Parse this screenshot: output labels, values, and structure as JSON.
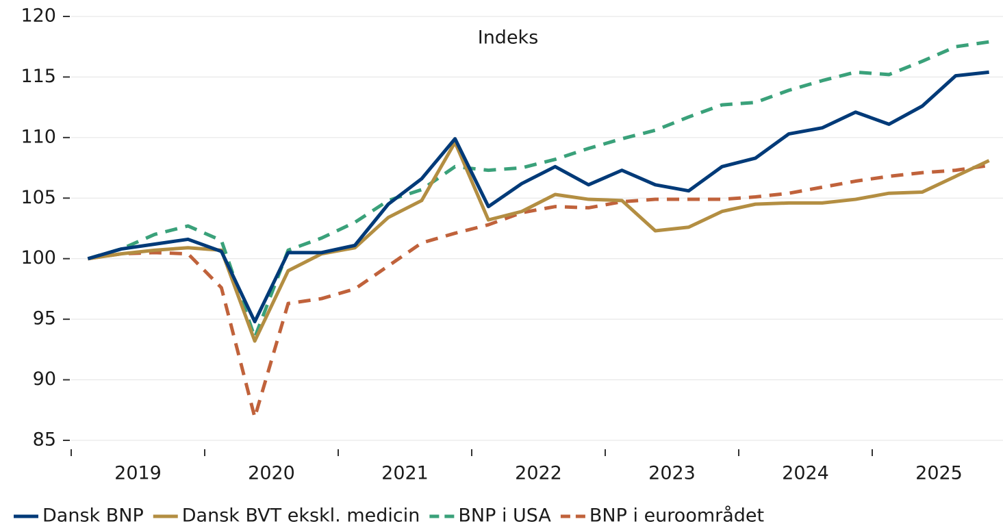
{
  "chart_data": {
    "type": "line",
    "title": "Indeks",
    "categories": [
      "2019",
      null,
      null,
      null,
      "2020",
      null,
      null,
      null,
      "2021",
      null,
      null,
      null,
      "2022",
      null,
      null,
      null,
      "2023",
      null,
      null,
      null,
      "2024",
      null,
      null,
      null,
      "2025",
      null,
      null,
      null
    ],
    "ylim": [
      85,
      120
    ],
    "yticks": [
      85,
      90,
      95,
      100,
      105,
      110,
      115,
      120
    ],
    "grid": true,
    "series": [
      {
        "name": "Dansk BNP",
        "color": "#003a78",
        "dash": false,
        "values": [
          100.0,
          100.8,
          101.2,
          101.6,
          100.6,
          94.8,
          100.5,
          100.5,
          101.1,
          104.5,
          106.6,
          109.9,
          104.3,
          106.2,
          107.6,
          106.1,
          107.3,
          106.1,
          105.6,
          107.6,
          108.3,
          110.3,
          110.8,
          112.1,
          111.1,
          112.6,
          115.1,
          115.4
        ]
      },
      {
        "name": "Dansk BVT ekskl. medicin",
        "color": "#b38e42",
        "dash": false,
        "values": [
          100.0,
          100.4,
          100.7,
          100.9,
          100.7,
          93.2,
          99.0,
          100.4,
          100.9,
          103.4,
          104.8,
          109.6,
          103.2,
          103.9,
          105.3,
          104.9,
          104.8,
          102.3,
          102.6,
          103.9,
          104.5,
          104.6,
          104.6,
          104.9,
          105.4,
          105.5,
          106.8,
          108.1
        ]
      },
      {
        "name": "BNP i USA",
        "color": "#3aa17a",
        "dash": true,
        "values": [
          100.0,
          100.8,
          102.0,
          102.7,
          101.5,
          93.5,
          100.7,
          101.7,
          103.0,
          104.8,
          105.7,
          107.6,
          107.3,
          107.5,
          108.2,
          109.1,
          109.9,
          110.6,
          111.7,
          112.7,
          112.9,
          113.9,
          114.7,
          115.4,
          115.2,
          116.3,
          117.5,
          117.9
        ]
      },
      {
        "name": "BNP i euroområdet",
        "color": "#c0623b",
        "dash": true,
        "values": [
          100.0,
          100.4,
          100.5,
          100.4,
          97.6,
          86.9,
          96.3,
          96.7,
          97.5,
          99.4,
          101.3,
          102.1,
          102.8,
          103.8,
          104.3,
          104.2,
          104.7,
          104.9,
          104.9,
          104.9,
          105.1,
          105.4,
          105.9,
          106.4,
          106.8,
          107.1,
          107.3,
          107.7
        ]
      }
    ]
  }
}
